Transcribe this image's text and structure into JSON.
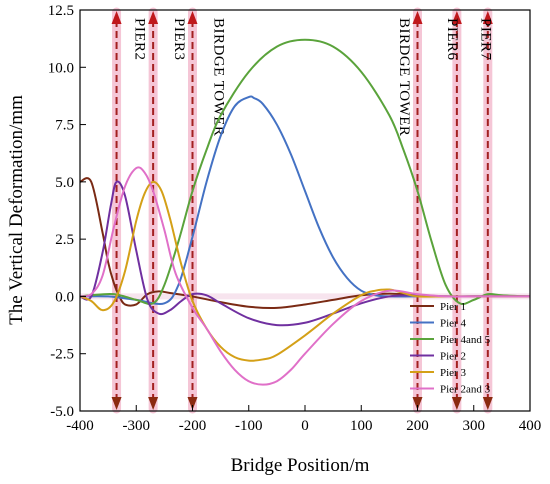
{
  "chart_data": {
    "type": "line",
    "xlabel": "Bridge Position/m",
    "ylabel": "The Vertical Deformation/mm",
    "xlim": [
      -400,
      400
    ],
    "ylim": [
      -5.0,
      12.5
    ],
    "x_ticks": [
      "-400",
      "-300",
      "-200",
      "-100",
      "0",
      "100",
      "200",
      "300",
      "400"
    ],
    "y_ticks": [
      "-5.0",
      "-2.5",
      "0.0",
      "2.5",
      "5.0",
      "7.5",
      "10.0",
      "12.5"
    ],
    "legend_position": "bottom-right",
    "grid": false,
    "markers": [
      {
        "label": "",
        "x": -335
      },
      {
        "label": "PIER2",
        "x": -270
      },
      {
        "label": "PIER3",
        "x": -200
      },
      {
        "label": "BIRDGE TOWER",
        "x": 200
      },
      {
        "label": "BIRDGE TOWER",
        "x": 270
      },
      {
        "label": "PIER6",
        "x": 325
      },
      {
        "label": "PIER7",
        "x": null
      }
    ],
    "marker_labels": [
      {
        "text": "PIER2",
        "x": -310
      },
      {
        "text": "PIER3",
        "x": -240
      },
      {
        "text": "BIRDGE TOWER",
        "x": -170
      },
      {
        "text": "BIRDGE TOWER",
        "x": 160
      },
      {
        "text": "PIER6",
        "x": 245
      },
      {
        "text": "PIER7",
        "x": 305
      }
    ],
    "marker_lines": [
      -335,
      -270,
      -200,
      200,
      270,
      325
    ],
    "series": [
      {
        "name": "Pier 1",
        "color": "#7a2a14",
        "x": [
          -400,
          -380,
          -360,
          -350,
          -340,
          -330,
          -320,
          -300,
          -280,
          -260,
          -240,
          -200,
          -150,
          -100,
          -50,
          0,
          50,
          100,
          150,
          200,
          250,
          300,
          350,
          400
        ],
        "y": [
          5.0,
          5.0,
          2.8,
          1.5,
          0.6,
          0.0,
          -0.35,
          -0.35,
          0.1,
          0.22,
          0.15,
          0.0,
          -0.25,
          -0.45,
          -0.5,
          -0.35,
          -0.15,
          0.05,
          0.12,
          0.05,
          0.0,
          0.0,
          0.0,
          0.0
        ]
      },
      {
        "name": "Pier 4",
        "color": "#4472c4",
        "x": [
          -400,
          -350,
          -300,
          -250,
          -225,
          -200,
          -175,
          -150,
          -125,
          -100,
          -90,
          -75,
          -50,
          -25,
          0,
          25,
          50,
          75,
          100,
          125,
          150,
          200,
          300,
          400
        ],
        "y": [
          0.0,
          0.0,
          -0.15,
          -0.3,
          0.5,
          2.6,
          5.0,
          7.0,
          8.3,
          8.7,
          8.65,
          8.4,
          7.5,
          6.2,
          4.6,
          3.0,
          1.7,
          0.8,
          0.25,
          0.05,
          0.0,
          0.0,
          0.0,
          0.0
        ]
      },
      {
        "name": "Pier 4and 5",
        "color": "#5aa33b",
        "x": [
          -400,
          -380,
          -340,
          -300,
          -270,
          -250,
          -225,
          -200,
          -175,
          -150,
          -100,
          -50,
          0,
          50,
          100,
          150,
          175,
          200,
          225,
          250,
          275,
          300,
          325,
          350,
          400
        ],
        "y": [
          0.0,
          0.05,
          0.1,
          -0.15,
          -0.3,
          0.5,
          2.4,
          4.6,
          6.4,
          7.9,
          9.8,
          10.9,
          11.2,
          10.9,
          9.8,
          7.9,
          6.4,
          4.6,
          2.4,
          0.5,
          -0.3,
          -0.15,
          0.1,
          0.05,
          0.0
        ]
      },
      {
        "name": "Pier 2",
        "color": "#7030a0",
        "x": [
          -400,
          -380,
          -360,
          -345,
          -335,
          -320,
          -300,
          -280,
          -260,
          -240,
          -220,
          -200,
          -175,
          -150,
          -100,
          -50,
          0,
          50,
          100,
          150,
          200,
          250,
          300,
          400
        ],
        "y": [
          0.0,
          0.0,
          1.9,
          4.0,
          5.0,
          4.4,
          2.0,
          -0.15,
          -0.75,
          -0.6,
          -0.2,
          0.1,
          0.05,
          -0.3,
          -0.95,
          -1.25,
          -1.15,
          -0.75,
          -0.3,
          0.0,
          0.05,
          0.0,
          0.0,
          0.0
        ]
      },
      {
        "name": "Pier 3",
        "color": "#d4a017",
        "x": [
          -400,
          -380,
          -360,
          -340,
          -320,
          -300,
          -285,
          -270,
          -255,
          -240,
          -220,
          -200,
          -175,
          -150,
          -125,
          -100,
          -75,
          -50,
          0,
          50,
          100,
          125,
          150,
          175,
          200,
          250,
          300,
          400
        ],
        "y": [
          0.0,
          -0.2,
          -0.6,
          -0.25,
          1.1,
          3.3,
          4.5,
          5.0,
          4.6,
          3.4,
          1.4,
          -0.2,
          -1.4,
          -2.2,
          -2.65,
          -2.8,
          -2.75,
          -2.55,
          -1.7,
          -0.75,
          0.05,
          0.25,
          0.3,
          0.15,
          0.0,
          0.0,
          0.0,
          0.0
        ]
      },
      {
        "name": "Pier 2and 3",
        "color": "#e070c8",
        "x": [
          -400,
          -380,
          -360,
          -340,
          -320,
          -300,
          -285,
          -270,
          -250,
          -230,
          -200,
          -175,
          -150,
          -125,
          -100,
          -75,
          -50,
          -25,
          0,
          50,
          100,
          150,
          200,
          250,
          300,
          400
        ],
        "y": [
          0.0,
          0.1,
          0.9,
          3.0,
          4.8,
          5.6,
          5.4,
          4.6,
          2.9,
          1.0,
          -0.5,
          -1.4,
          -2.4,
          -3.2,
          -3.7,
          -3.85,
          -3.7,
          -3.2,
          -2.5,
          -1.2,
          -0.2,
          0.25,
          0.1,
          0.0,
          0.0,
          0.0
        ]
      }
    ]
  }
}
